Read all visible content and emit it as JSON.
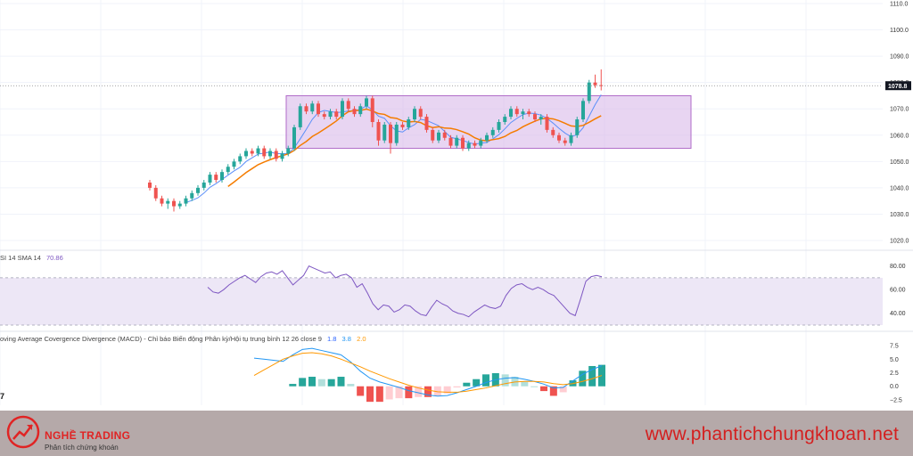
{
  "price_axis": {
    "ticks": [
      "1110.0",
      "1100.0",
      "1090.0",
      "1080.0",
      "1070.0",
      "1060.0",
      "1050.0",
      "1040.0",
      "1030.0",
      "1020.0"
    ],
    "current_price_label": "1078.8",
    "current_price_color": "#131722"
  },
  "rsi": {
    "legend_label": "SI 14 SMA 14",
    "legend_value": "70.86",
    "ticks": [
      "80.00",
      "60.00",
      "40.00"
    ],
    "line_color": "#7e57c2",
    "band_color": "#ede7f6"
  },
  "macd": {
    "legend_label": "oving Average Covergence Divergence (MACD) - Chỉ báo Biến động Phân kỳ/Hội tụ trung bình 12 26 close 9",
    "values": [
      "1.8",
      "3.8",
      "2.0"
    ],
    "value_colors": [
      "#2962ff",
      "#2196f3",
      "#ff9800"
    ],
    "ticks": [
      "7.5",
      "5.0",
      "2.5",
      "0.0",
      "−2.5"
    ]
  },
  "range_box_color": "#d9b9e9",
  "tv_mark": "7",
  "footer": {
    "brand_name": "NGHỀ TRADING",
    "brand_sub": "Phân tích chứng khoán",
    "website": "www.phantichchungkhoan.net"
  },
  "chart_data": {
    "type": "line",
    "price_candles": [
      [
        1042,
        1040,
        1043,
        1039
      ],
      [
        1040,
        1036,
        1041,
        1035
      ],
      [
        1036,
        1034,
        1037,
        1033
      ],
      [
        1034,
        1035,
        1036,
        1032
      ],
      [
        1035,
        1033,
        1036,
        1031
      ],
      [
        1033,
        1034,
        1035,
        1032
      ],
      [
        1034,
        1036,
        1037,
        1033
      ],
      [
        1036,
        1038,
        1039,
        1035
      ],
      [
        1038,
        1040,
        1041,
        1037
      ],
      [
        1040,
        1042,
        1043,
        1039
      ],
      [
        1042,
        1045,
        1046,
        1041
      ],
      [
        1045,
        1043,
        1046,
        1042
      ],
      [
        1043,
        1046,
        1047,
        1042
      ],
      [
        1046,
        1048,
        1049,
        1045
      ],
      [
        1048,
        1050,
        1051,
        1047
      ],
      [
        1050,
        1052,
        1053,
        1049
      ],
      [
        1052,
        1054,
        1055,
        1051
      ],
      [
        1054,
        1053,
        1055,
        1052
      ],
      [
        1053,
        1055,
        1056,
        1052
      ],
      [
        1055,
        1052,
        1056,
        1051
      ],
      [
        1052,
        1054,
        1055,
        1051
      ],
      [
        1054,
        1051,
        1055,
        1050
      ],
      [
        1051,
        1053,
        1054,
        1050
      ],
      [
        1053,
        1055,
        1056,
        1052
      ],
      [
        1055,
        1063,
        1064,
        1054
      ],
      [
        1063,
        1071,
        1072,
        1062
      ],
      [
        1071,
        1069,
        1072,
        1068
      ],
      [
        1069,
        1072,
        1073,
        1068
      ],
      [
        1072,
        1068,
        1073,
        1067
      ],
      [
        1068,
        1067,
        1069,
        1066
      ],
      [
        1067,
        1069,
        1070,
        1066
      ],
      [
        1069,
        1067,
        1070,
        1066
      ],
      [
        1067,
        1073,
        1074,
        1066
      ],
      [
        1073,
        1070,
        1074,
        1069
      ],
      [
        1070,
        1068,
        1071,
        1067
      ],
      [
        1068,
        1071,
        1072,
        1067
      ],
      [
        1071,
        1074,
        1075,
        1070
      ],
      [
        1074,
        1065,
        1075,
        1063
      ],
      [
        1065,
        1058,
        1066,
        1056
      ],
      [
        1058,
        1064,
        1065,
        1057
      ],
      [
        1064,
        1057,
        1065,
        1053
      ],
      [
        1057,
        1064,
        1065,
        1056
      ],
      [
        1064,
        1063,
        1065,
        1062
      ],
      [
        1063,
        1066,
        1067,
        1062
      ],
      [
        1066,
        1070,
        1071,
        1065
      ],
      [
        1070,
        1067,
        1071,
        1066
      ],
      [
        1067,
        1062,
        1068,
        1061
      ],
      [
        1062,
        1058,
        1063,
        1057
      ],
      [
        1058,
        1061,
        1062,
        1057
      ],
      [
        1061,
        1059,
        1062,
        1058
      ],
      [
        1059,
        1056,
        1060,
        1055
      ],
      [
        1056,
        1059,
        1060,
        1055
      ],
      [
        1059,
        1055,
        1060,
        1054
      ],
      [
        1055,
        1057,
        1058,
        1054
      ],
      [
        1057,
        1056,
        1058,
        1055
      ],
      [
        1056,
        1058,
        1059,
        1055
      ],
      [
        1058,
        1060,
        1061,
        1057
      ],
      [
        1060,
        1062,
        1063,
        1059
      ],
      [
        1062,
        1065,
        1066,
        1061
      ],
      [
        1065,
        1067,
        1068,
        1064
      ],
      [
        1067,
        1070,
        1071,
        1066
      ],
      [
        1070,
        1068,
        1071,
        1067
      ],
      [
        1068,
        1069,
        1070,
        1066
      ],
      [
        1069,
        1068,
        1070,
        1067
      ],
      [
        1068,
        1066,
        1069,
        1065
      ],
      [
        1066,
        1067,
        1068,
        1064
      ],
      [
        1067,
        1062,
        1068,
        1061
      ],
      [
        1062,
        1060,
        1063,
        1059
      ],
      [
        1060,
        1058,
        1061,
        1057
      ],
      [
        1058,
        1057,
        1059,
        1056
      ],
      [
        1057,
        1060,
        1061,
        1056
      ],
      [
        1060,
        1066,
        1067,
        1059
      ],
      [
        1066,
        1073,
        1074,
        1065
      ],
      [
        1073,
        1080,
        1081,
        1072
      ],
      [
        1080,
        1079,
        1083,
        1078
      ],
      [
        1079,
        1078.8,
        1085,
        1077
      ]
    ],
    "range_box": {
      "price_low": 1055,
      "price_high": 1075
    },
    "rsi_values": [
      62,
      58,
      57,
      60,
      64,
      67,
      70,
      72,
      69,
      66,
      71,
      74,
      75,
      73,
      76,
      70,
      64,
      68,
      72,
      80,
      78,
      76,
      74,
      75,
      70,
      72,
      73,
      70,
      62,
      65,
      57,
      48,
      43,
      47,
      46,
      41,
      43,
      47,
      46,
      42,
      39,
      38,
      45,
      51,
      48,
      46,
      42,
      40,
      39,
      37,
      41,
      44,
      47,
      45,
      44,
      46,
      55,
      61,
      64,
      65,
      62,
      60,
      62,
      60,
      57,
      55,
      50,
      45,
      40,
      38,
      52,
      67,
      71,
      72,
      70.86
    ],
    "rsi_ylim": [
      30,
      85
    ],
    "macd_line": [
      5.2,
      5.0,
      4.8,
      4.6,
      5.8,
      6.8,
      7.0,
      6.6,
      6.2,
      5.8,
      4.5,
      2.8,
      1.5,
      0.8,
      0.3,
      -0.2,
      -0.8,
      -1.2,
      -1.6,
      -1.8,
      -1.7,
      -1.2,
      -0.6,
      0.0,
      0.7,
      1.2,
      1.5,
      1.6,
      1.3,
      0.9,
      0.4,
      -0.3,
      -0.2,
      1.0,
      2.2,
      3.1,
      3.8
    ],
    "signal_line": [
      2.0,
      3.0,
      4.0,
      5.0,
      5.6,
      6.1,
      6.2,
      6.0,
      5.6,
      5.0,
      4.3,
      3.6,
      2.8,
      2.1,
      1.4,
      0.8,
      0.2,
      -0.3,
      -0.7,
      -1.0,
      -1.1,
      -1.1,
      -0.9,
      -0.6,
      -0.3,
      0.1,
      0.5,
      0.8,
      0.9,
      0.9,
      0.8,
      0.5,
      0.3,
      0.5,
      0.9,
      1.4,
      2.0
    ],
    "macd_ylim": [
      -3,
      8.5
    ]
  }
}
